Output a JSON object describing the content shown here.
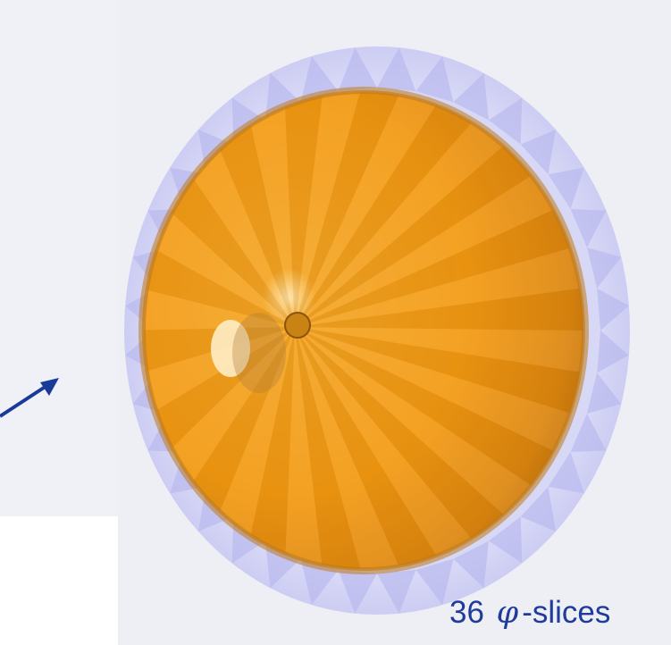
{
  "caption": {
    "count": "36",
    "symbol": "φ",
    "suffix": "-slices"
  },
  "colors": {
    "panel_background": "#eeeef5",
    "left_panel_background": "#f0f0f7",
    "outer_shell": "#c8c8f4",
    "cone_fill": "#f39a12",
    "cone_shadow": "#a85e0a",
    "arrow": "#1a3a9a",
    "caption_text": "#1f3b9c"
  },
  "figure": {
    "slices": 36,
    "arrow_icon": "arrow-right-icon"
  }
}
